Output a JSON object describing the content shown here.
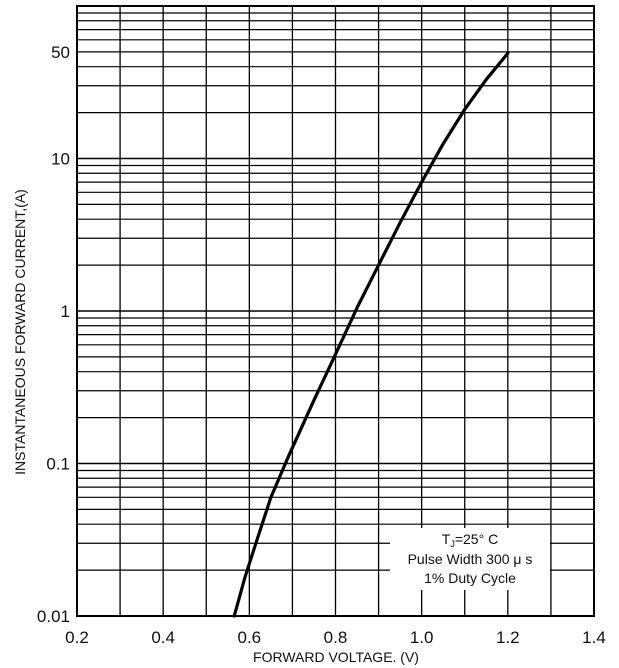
{
  "chart_data": {
    "type": "line",
    "title": "",
    "xlabel": "FORWARD VOLTAGE. (V)",
    "ylabel": "INSTANTANEOUS FORWARD CURRENT,(A)",
    "xlim": [
      0.2,
      1.4
    ],
    "ylim": [
      0.01,
      100
    ],
    "yscale": "log",
    "grid": true,
    "x_ticks": [
      "0.2",
      "0.4",
      "0.6",
      "0.8",
      "1.0",
      "1.2",
      "1.4"
    ],
    "y_ticks": [
      {
        "value": 0.01,
        "label": "0.01"
      },
      {
        "value": 0.1,
        "label": "0.1"
      },
      {
        "value": 1,
        "label": "1"
      },
      {
        "value": 10,
        "label": "10"
      },
      {
        "value": 50,
        "label": "50"
      }
    ],
    "series": [
      {
        "name": "",
        "x": [
          0.565,
          0.59,
          0.62,
          0.65,
          0.69,
          0.75,
          0.8,
          0.85,
          0.9,
          0.95,
          1.0,
          1.05,
          1.1,
          1.15,
          1.2
        ],
        "y": [
          0.01,
          0.018,
          0.033,
          0.06,
          0.11,
          0.26,
          0.52,
          1.05,
          2.0,
          3.8,
          7.0,
          12.5,
          21,
          33,
          49
        ]
      }
    ],
    "annotation": {
      "line1_main": "T",
      "line1_sub": "J",
      "line1_rest": "=25° C",
      "line2": "Pulse Width 300 μ s",
      "line3": "1% Duty Cycle"
    }
  }
}
